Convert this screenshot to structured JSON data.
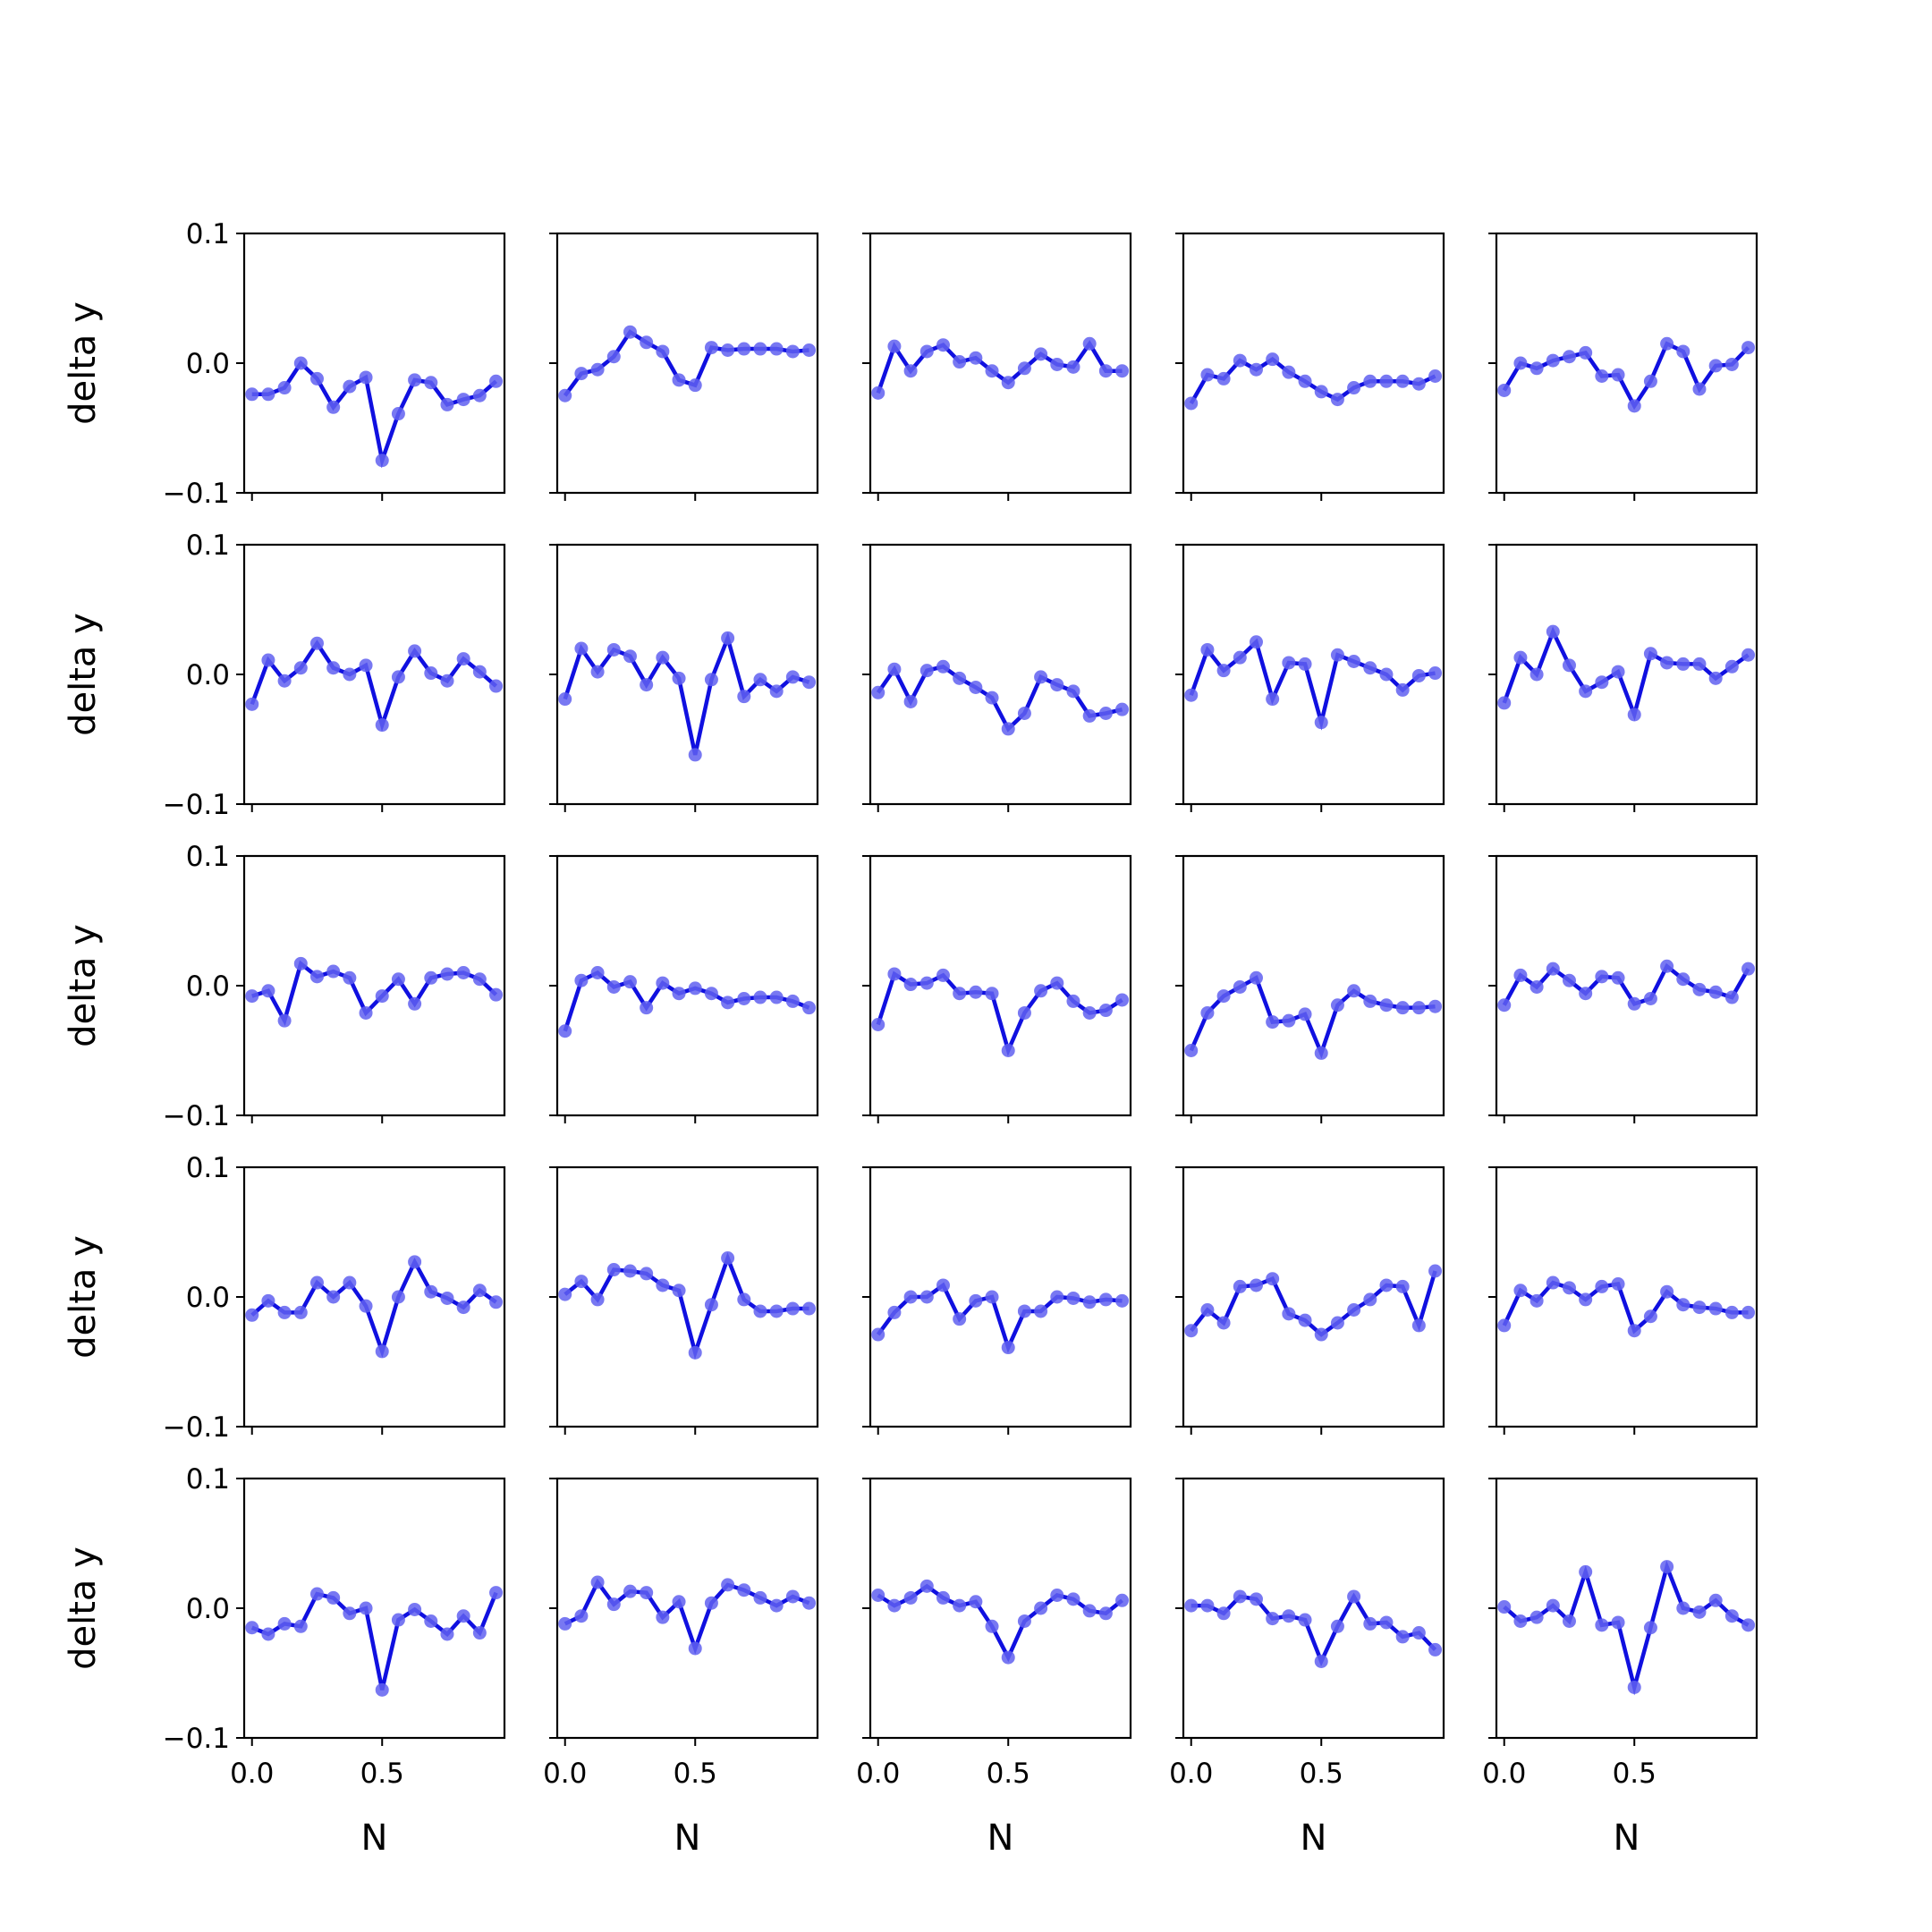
{
  "figure": {
    "xlabel": "N",
    "ylabel": "delta y",
    "line_color": "#1010e0",
    "marker_color": "#6060f0"
  },
  "chart_data": {
    "type": "line",
    "rows": 5,
    "cols": 5,
    "sharex": true,
    "sharey": true,
    "xlabel": "N",
    "ylabel": "delta y",
    "xlim": [
      -0.03,
      0.97
    ],
    "ylim": [
      -0.1,
      0.1
    ],
    "xticks": [
      0.0,
      0.5
    ],
    "xtick_labels": [
      "0.0",
      "0.5"
    ],
    "yticks": [
      -0.1,
      0.0,
      0.1
    ],
    "ytick_labels": [
      "−0.1",
      "0.0",
      "0.1"
    ],
    "x": [
      0.0,
      0.0625,
      0.125,
      0.1875,
      0.25,
      0.3125,
      0.375,
      0.4375,
      0.5,
      0.5625,
      0.625,
      0.6875,
      0.75,
      0.8125,
      0.875,
      0.9375
    ],
    "panels": [
      {
        "values": [
          -0.024,
          -0.024,
          -0.019,
          0.0,
          -0.012,
          -0.034,
          -0.018,
          -0.011,
          -0.075,
          -0.039,
          -0.013,
          -0.015,
          -0.032,
          -0.028,
          -0.025,
          -0.014
        ]
      },
      {
        "values": [
          -0.025,
          -0.008,
          -0.005,
          0.005,
          0.024,
          0.016,
          0.009,
          -0.013,
          -0.017,
          0.012,
          0.01,
          0.011,
          0.011,
          0.011,
          0.009,
          0.01
        ]
      },
      {
        "values": [
          -0.023,
          0.013,
          -0.006,
          0.009,
          0.014,
          0.001,
          0.004,
          -0.006,
          -0.015,
          -0.004,
          0.007,
          -0.001,
          -0.003,
          0.015,
          -0.006,
          -0.006
        ]
      },
      {
        "values": [
          -0.031,
          -0.009,
          -0.012,
          0.002,
          -0.005,
          0.003,
          -0.007,
          -0.014,
          -0.022,
          -0.028,
          -0.019,
          -0.014,
          -0.014,
          -0.014,
          -0.016,
          -0.01
        ]
      },
      {
        "values": [
          -0.021,
          0.0,
          -0.004,
          0.002,
          0.005,
          0.008,
          -0.01,
          -0.009,
          -0.033,
          -0.014,
          0.015,
          0.009,
          -0.02,
          -0.002,
          -0.001,
          0.012
        ]
      },
      {
        "values": [
          -0.023,
          0.011,
          -0.005,
          0.005,
          0.024,
          0.005,
          0.0,
          0.007,
          -0.039,
          -0.002,
          0.018,
          0.001,
          -0.005,
          0.012,
          0.002,
          -0.009
        ]
      },
      {
        "values": [
          -0.019,
          0.02,
          0.002,
          0.019,
          0.014,
          -0.008,
          0.013,
          -0.003,
          -0.062,
          -0.004,
          0.028,
          -0.017,
          -0.004,
          -0.013,
          -0.002,
          -0.006
        ]
      },
      {
        "values": [
          -0.014,
          0.004,
          -0.021,
          0.003,
          0.006,
          -0.003,
          -0.01,
          -0.018,
          -0.042,
          -0.03,
          -0.002,
          -0.008,
          -0.013,
          -0.032,
          -0.03,
          -0.027
        ]
      },
      {
        "values": [
          -0.016,
          0.019,
          0.003,
          0.013,
          0.025,
          -0.019,
          0.009,
          0.008,
          -0.037,
          0.015,
          0.01,
          0.005,
          0.0,
          -0.012,
          -0.001,
          0.001
        ]
      },
      {
        "values": [
          -0.022,
          0.013,
          0.0,
          0.033,
          0.007,
          -0.013,
          -0.006,
          0.002,
          -0.031,
          0.016,
          0.009,
          0.008,
          0.008,
          -0.003,
          0.006,
          0.015
        ]
      },
      {
        "values": [
          -0.008,
          -0.004,
          -0.027,
          0.017,
          0.007,
          0.011,
          0.006,
          -0.021,
          -0.008,
          0.005,
          -0.014,
          0.006,
          0.009,
          0.01,
          0.005,
          -0.007
        ]
      },
      {
        "values": [
          -0.035,
          0.004,
          0.01,
          -0.001,
          0.003,
          -0.017,
          0.002,
          -0.006,
          -0.002,
          -0.006,
          -0.013,
          -0.01,
          -0.009,
          -0.009,
          -0.012,
          -0.017
        ]
      },
      {
        "values": [
          -0.03,
          0.009,
          0.001,
          0.002,
          0.008,
          -0.006,
          -0.005,
          -0.006,
          -0.05,
          -0.021,
          -0.004,
          0.002,
          -0.012,
          -0.021,
          -0.019,
          -0.011
        ]
      },
      {
        "values": [
          -0.05,
          -0.021,
          -0.008,
          -0.001,
          0.006,
          -0.028,
          -0.027,
          -0.022,
          -0.052,
          -0.015,
          -0.004,
          -0.012,
          -0.015,
          -0.017,
          -0.017,
          -0.016
        ]
      },
      {
        "values": [
          -0.015,
          0.008,
          -0.001,
          0.013,
          0.004,
          -0.006,
          0.007,
          0.006,
          -0.014,
          -0.01,
          0.015,
          0.005,
          -0.003,
          -0.005,
          -0.009,
          0.013
        ]
      },
      {
        "values": [
          -0.014,
          -0.003,
          -0.012,
          -0.012,
          0.011,
          0.0,
          0.011,
          -0.007,
          -0.042,
          0.0,
          0.027,
          0.004,
          -0.001,
          -0.008,
          0.005,
          -0.004
        ]
      },
      {
        "values": [
          0.002,
          0.012,
          -0.002,
          0.021,
          0.02,
          0.018,
          0.009,
          0.005,
          -0.043,
          -0.006,
          0.03,
          -0.002,
          -0.011,
          -0.011,
          -0.009,
          -0.009
        ]
      },
      {
        "values": [
          -0.029,
          -0.012,
          0.0,
          0.0,
          0.009,
          -0.017,
          -0.003,
          0.0,
          -0.039,
          -0.011,
          -0.011,
          0.0,
          -0.001,
          -0.004,
          -0.002,
          -0.003
        ]
      },
      {
        "values": [
          -0.026,
          -0.01,
          -0.02,
          0.008,
          0.009,
          0.014,
          -0.013,
          -0.018,
          -0.029,
          -0.02,
          -0.01,
          -0.002,
          0.009,
          0.008,
          -0.022,
          0.02
        ]
      },
      {
        "values": [
          -0.022,
          0.005,
          -0.003,
          0.011,
          0.007,
          -0.002,
          0.008,
          0.01,
          -0.026,
          -0.015,
          0.004,
          -0.006,
          -0.008,
          -0.009,
          -0.012,
          -0.012
        ]
      },
      {
        "values": [
          -0.015,
          -0.02,
          -0.012,
          -0.014,
          0.011,
          0.008,
          -0.004,
          0.0,
          -0.063,
          -0.009,
          -0.001,
          -0.01,
          -0.02,
          -0.006,
          -0.019,
          0.012
        ]
      },
      {
        "values": [
          -0.012,
          -0.006,
          0.02,
          0.003,
          0.013,
          0.012,
          -0.007,
          0.005,
          -0.031,
          0.004,
          0.018,
          0.014,
          0.008,
          0.002,
          0.009,
          0.004
        ]
      },
      {
        "values": [
          0.01,
          0.002,
          0.008,
          0.017,
          0.008,
          0.002,
          0.005,
          -0.014,
          -0.038,
          -0.01,
          0.0,
          0.01,
          0.007,
          -0.002,
          -0.004,
          0.006
        ]
      },
      {
        "values": [
          0.002,
          0.002,
          -0.004,
          0.009,
          0.007,
          -0.008,
          -0.006,
          -0.009,
          -0.041,
          -0.014,
          0.009,
          -0.012,
          -0.011,
          -0.022,
          -0.019,
          -0.032
        ]
      },
      {
        "values": [
          0.001,
          -0.01,
          -0.007,
          0.002,
          -0.01,
          0.028,
          -0.013,
          -0.011,
          -0.061,
          -0.015,
          0.032,
          0.0,
          -0.003,
          0.006,
          -0.006,
          -0.013
        ]
      }
    ]
  }
}
